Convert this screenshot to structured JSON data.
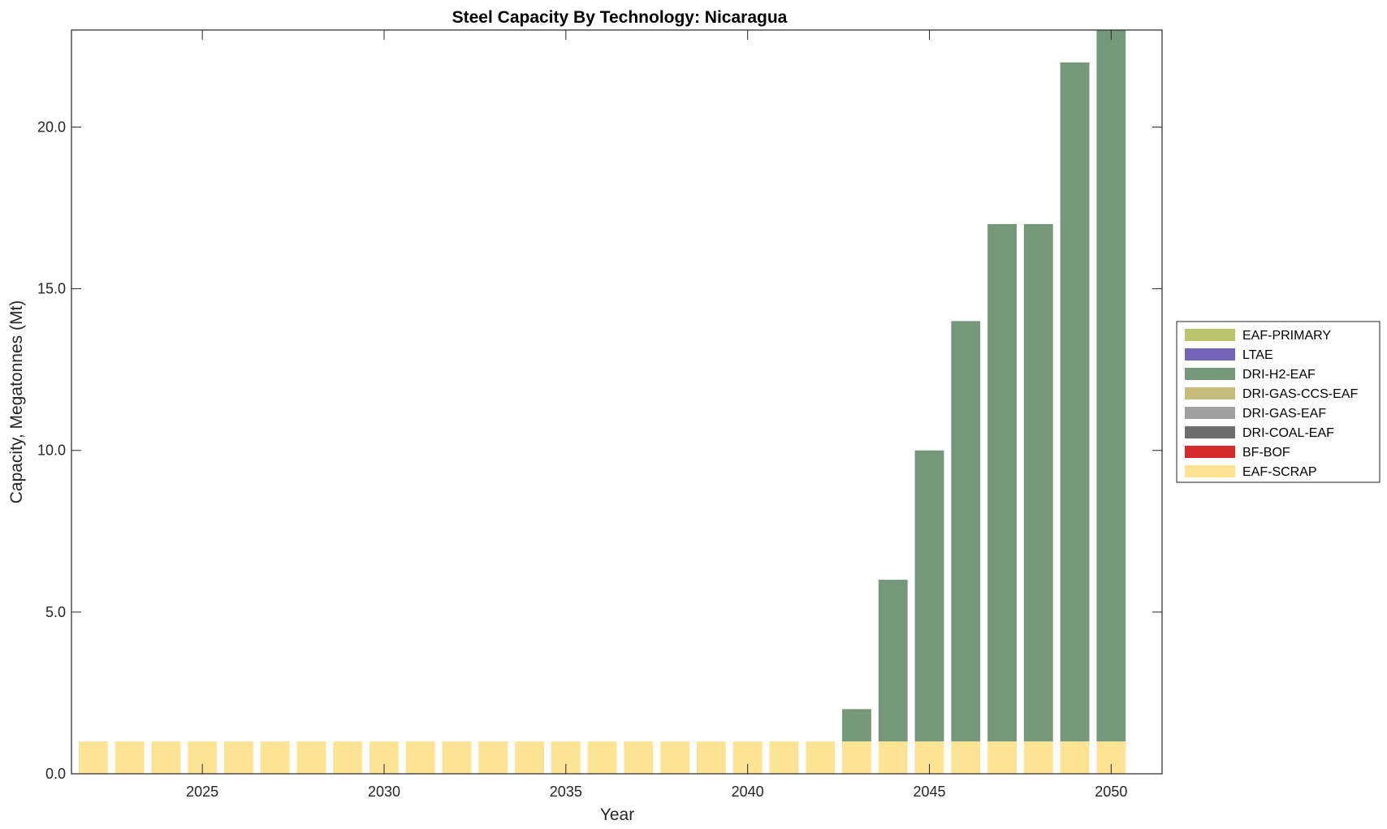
{
  "chart_data": {
    "type": "bar",
    "stacked": true,
    "title": "Steel Capacity By Technology: Nicaragua",
    "xlabel": "Year",
    "ylabel": "Capacity, Megatonnes (Mt)",
    "xlim": [
      2021.4,
      2051.4
    ],
    "ylim": [
      0,
      23
    ],
    "x_ticks": [
      2025,
      2030,
      2035,
      2040,
      2045,
      2050
    ],
    "x_tick_labels": [
      "2025",
      "2030",
      "2035",
      "2040",
      "2045",
      "2050"
    ],
    "y_ticks": [
      0,
      5,
      10,
      15,
      20
    ],
    "y_tick_labels": [
      "0.0",
      "5.0",
      "10.0",
      "15.0",
      "20.0"
    ],
    "grid": false,
    "legend_position": "outside-right",
    "x": [
      2022,
      2023,
      2024,
      2025,
      2026,
      2027,
      2028,
      2029,
      2030,
      2031,
      2032,
      2033,
      2034,
      2035,
      2036,
      2037,
      2038,
      2039,
      2040,
      2041,
      2042,
      2043,
      2044,
      2045,
      2046,
      2047,
      2048,
      2049,
      2050
    ],
    "series": [
      {
        "name": "EAF-SCRAP",
        "color": "#fde495",
        "values": [
          1,
          1,
          1,
          1,
          1,
          1,
          1,
          1,
          1,
          1,
          1,
          1,
          1,
          1,
          1,
          1,
          1,
          1,
          1,
          1,
          1,
          1,
          1,
          1,
          1,
          1,
          1,
          1,
          1
        ]
      },
      {
        "name": "BF-BOF",
        "color": "#d62b2b",
        "values": [
          0,
          0,
          0,
          0,
          0,
          0,
          0,
          0,
          0,
          0,
          0,
          0,
          0,
          0,
          0,
          0,
          0,
          0,
          0,
          0,
          0,
          0,
          0,
          0,
          0,
          0,
          0,
          0,
          0
        ]
      },
      {
        "name": "DRI-COAL-EAF",
        "color": "#6d6d6d",
        "values": [
          0,
          0,
          0,
          0,
          0,
          0,
          0,
          0,
          0,
          0,
          0,
          0,
          0,
          0,
          0,
          0,
          0,
          0,
          0,
          0,
          0,
          0,
          0,
          0,
          0,
          0,
          0,
          0,
          0
        ]
      },
      {
        "name": "DRI-GAS-EAF",
        "color": "#a0a0a0",
        "values": [
          0,
          0,
          0,
          0,
          0,
          0,
          0,
          0,
          0,
          0,
          0,
          0,
          0,
          0,
          0,
          0,
          0,
          0,
          0,
          0,
          0,
          0,
          0,
          0,
          0,
          0,
          0,
          0,
          0
        ]
      },
      {
        "name": "DRI-GAS-CCS-EAF",
        "color": "#c6bc7c",
        "values": [
          0,
          0,
          0,
          0,
          0,
          0,
          0,
          0,
          0,
          0,
          0,
          0,
          0,
          0,
          0,
          0,
          0,
          0,
          0,
          0,
          0,
          0,
          0,
          0,
          0,
          0,
          0,
          0,
          0
        ]
      },
      {
        "name": "DRI-H2-EAF",
        "color": "#75987b",
        "values": [
          0,
          0,
          0,
          0,
          0,
          0,
          0,
          0,
          0,
          0,
          0,
          0,
          0,
          0,
          0,
          0,
          0,
          0,
          0,
          0,
          0,
          1,
          5,
          9,
          13,
          16,
          16,
          21,
          22
        ]
      },
      {
        "name": "LTAE",
        "color": "#7565b9",
        "values": [
          0,
          0,
          0,
          0,
          0,
          0,
          0,
          0,
          0,
          0,
          0,
          0,
          0,
          0,
          0,
          0,
          0,
          0,
          0,
          0,
          0,
          0,
          0,
          0,
          0,
          0,
          0,
          0,
          0
        ]
      },
      {
        "name": "EAF-PRIMARY",
        "color": "#bac46a",
        "values": [
          0,
          0,
          0,
          0,
          0,
          0,
          0,
          0,
          0,
          0,
          0,
          0,
          0,
          0,
          0,
          0,
          0,
          0,
          0,
          0,
          0,
          0,
          0,
          0,
          0,
          0,
          0,
          0,
          0
        ]
      }
    ],
    "legend_order": [
      "EAF-PRIMARY",
      "LTAE",
      "DRI-H2-EAF",
      "DRI-GAS-CCS-EAF",
      "DRI-GAS-EAF",
      "DRI-COAL-EAF",
      "BF-BOF",
      "EAF-SCRAP"
    ]
  }
}
